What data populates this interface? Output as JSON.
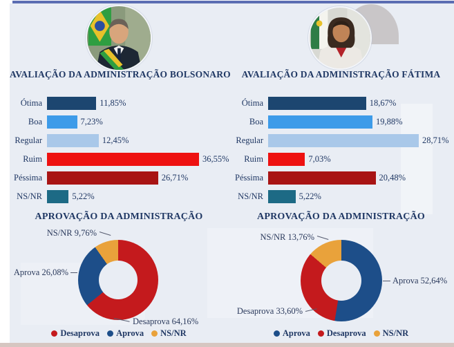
{
  "header": {
    "left_avatar_alt": "Foto de Bolsonaro",
    "right_avatar_alt": "Foto de Fátima"
  },
  "colors": {
    "accent_bar": "#5b6db2",
    "background": "#e9edf4",
    "text_navy": "#203864"
  },
  "chart_data": [
    {
      "type": "bar",
      "orientation": "horizontal",
      "title": "AVALIAÇÃO DA ADMINISTRAÇÃO BOLSONARO",
      "categories": [
        "Ótima",
        "Boa",
        "Regular",
        "Ruim",
        "Péssima",
        "NS/NR"
      ],
      "values": [
        11.85,
        7.23,
        12.45,
        36.55,
        26.71,
        5.22
      ],
      "value_labels": [
        "11,85%",
        "7,23%",
        "12,45%",
        "36,55%",
        "26,71%",
        "5,22%"
      ],
      "colors": [
        "#1c4670",
        "#3d9be9",
        "#a9c8e9",
        "#ee1111",
        "#a81414",
        "#1d6a85"
      ],
      "value_suffix": "%",
      "grid": false,
      "legend": false
    },
    {
      "type": "bar",
      "orientation": "horizontal",
      "title": "AVALIAÇÃO DA ADMINISTRAÇÃO FÁTIMA",
      "categories": [
        "Ótima",
        "Boa",
        "Regular",
        "Ruim",
        "Péssima",
        "NS/NR"
      ],
      "values": [
        18.67,
        19.88,
        28.71,
        7.03,
        20.48,
        5.22
      ],
      "value_labels": [
        "18,67%",
        "19,88%",
        "28,71%",
        "7,03%",
        "20,48%",
        "5,22%"
      ],
      "colors": [
        "#1c4670",
        "#3d9be9",
        "#a9c8e9",
        "#ee1111",
        "#a81414",
        "#1d6a85"
      ],
      "value_suffix": "%",
      "grid": false,
      "legend": false
    },
    {
      "type": "pie",
      "subtype": "donut",
      "title": "APROVAÇÃO DA ADMINISTRAÇÃO",
      "start_angle_deg": 0,
      "direction": "clockwise",
      "legend_position": "bottom",
      "slices": [
        {
          "label": "Desaprova",
          "value": 64.16,
          "callout": "Desaprova 64,16%",
          "color": "#c41a1d"
        },
        {
          "label": "Aprova",
          "value": 26.08,
          "callout": "Aprova 26,08%",
          "color": "#1d4e89"
        },
        {
          "label": "NS/NR",
          "value": 9.76,
          "callout": "NS/NR 9,76%",
          "color": "#e9a23b"
        }
      ]
    },
    {
      "type": "pie",
      "subtype": "donut",
      "title": "APROVAÇÃO DA ADMINISTRAÇÃO",
      "start_angle_deg": 0,
      "direction": "clockwise",
      "legend_position": "bottom",
      "slices": [
        {
          "label": "Aprova",
          "value": 52.64,
          "callout": "Aprova 52,64%",
          "color": "#1d4e89"
        },
        {
          "label": "Desaprova",
          "value": 33.6,
          "callout": "Desaprova 33,60%",
          "color": "#c41a1d"
        },
        {
          "label": "NS/NR",
          "value": 13.76,
          "callout": "NS/NR 13,76%",
          "color": "#e9a23b"
        }
      ]
    }
  ]
}
